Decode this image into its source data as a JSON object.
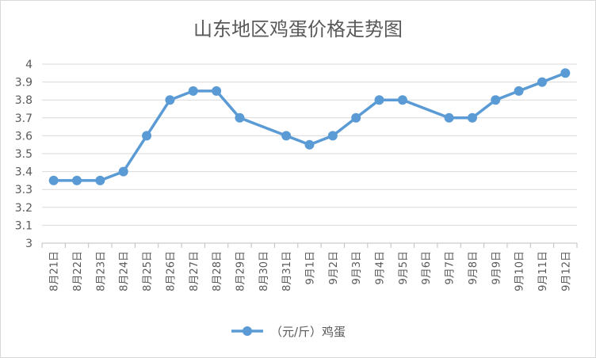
{
  "chart_data": {
    "type": "line",
    "title": "山东地区鸡蛋价格走势图",
    "xlabel": "",
    "ylabel": "",
    "categories": [
      "8月21日",
      "8月22日",
      "8月23日",
      "8月24日",
      "8月25日",
      "8月26日",
      "8月27日",
      "8月28日",
      "8月29日",
      "8月30日",
      "8月31日",
      "9月1日",
      "9月2日",
      "9月3日",
      "9月4日",
      "9月5日",
      "9月6日",
      "9月7日",
      "9月8日",
      "9月9日",
      "9月10日",
      "9月11日",
      "9月12日"
    ],
    "series": [
      {
        "name": "（元/斤）鸡蛋",
        "color": "#5b9bd5",
        "values": [
          3.35,
          3.35,
          3.35,
          3.4,
          3.6,
          3.8,
          3.85,
          3.85,
          3.7,
          null,
          3.6,
          3.55,
          3.6,
          3.7,
          3.8,
          3.8,
          null,
          3.7,
          3.7,
          3.8,
          3.85,
          3.9,
          3.95
        ]
      }
    ],
    "yticks": [
      "3",
      "3.1",
      "3.2",
      "3.3",
      "3.4",
      "3.5",
      "3.6",
      "3.7",
      "3.8",
      "3.9",
      "4"
    ],
    "ylim": [
      3,
      4
    ],
    "grid": true,
    "legend_position": "bottom",
    "gaps": "span"
  }
}
